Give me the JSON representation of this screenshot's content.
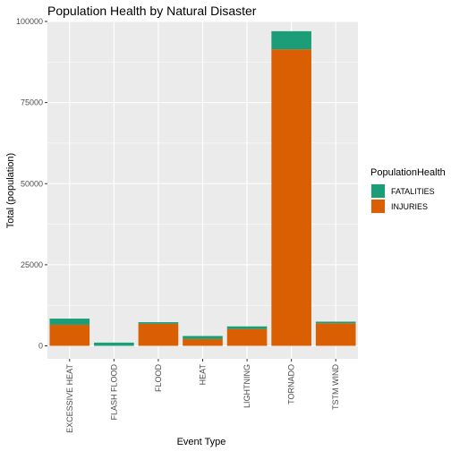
{
  "chart_data": {
    "type": "bar",
    "stacked": true,
    "title": "Population Health by Natural Disaster",
    "xlabel": "Event Type",
    "ylabel": "Total (population)",
    "ylim": [
      -4000,
      100000
    ],
    "yticks": [
      0,
      25000,
      50000,
      75000,
      100000
    ],
    "ytick_labels": [
      "0",
      "25000",
      "50000",
      "75000",
      "100000"
    ],
    "categories": [
      "EXCESSIVE HEAT",
      "FLASH FLOOD",
      "FLOOD",
      "HEAT",
      "LIGHTNING",
      "TORNADO",
      "TSTM WIND"
    ],
    "legend": {
      "title": "PopulationHealth",
      "position": "right"
    },
    "grid": true,
    "series": [
      {
        "name": "FATALITIES",
        "color": "#1B9E77",
        "values": [
          1900,
          1000,
          500,
          940,
          800,
          5600,
          500
        ]
      },
      {
        "name": "INJURIES",
        "color": "#D95F02",
        "values": [
          6500,
          0,
          6800,
          2100,
          5200,
          91400,
          6960
        ]
      }
    ]
  }
}
